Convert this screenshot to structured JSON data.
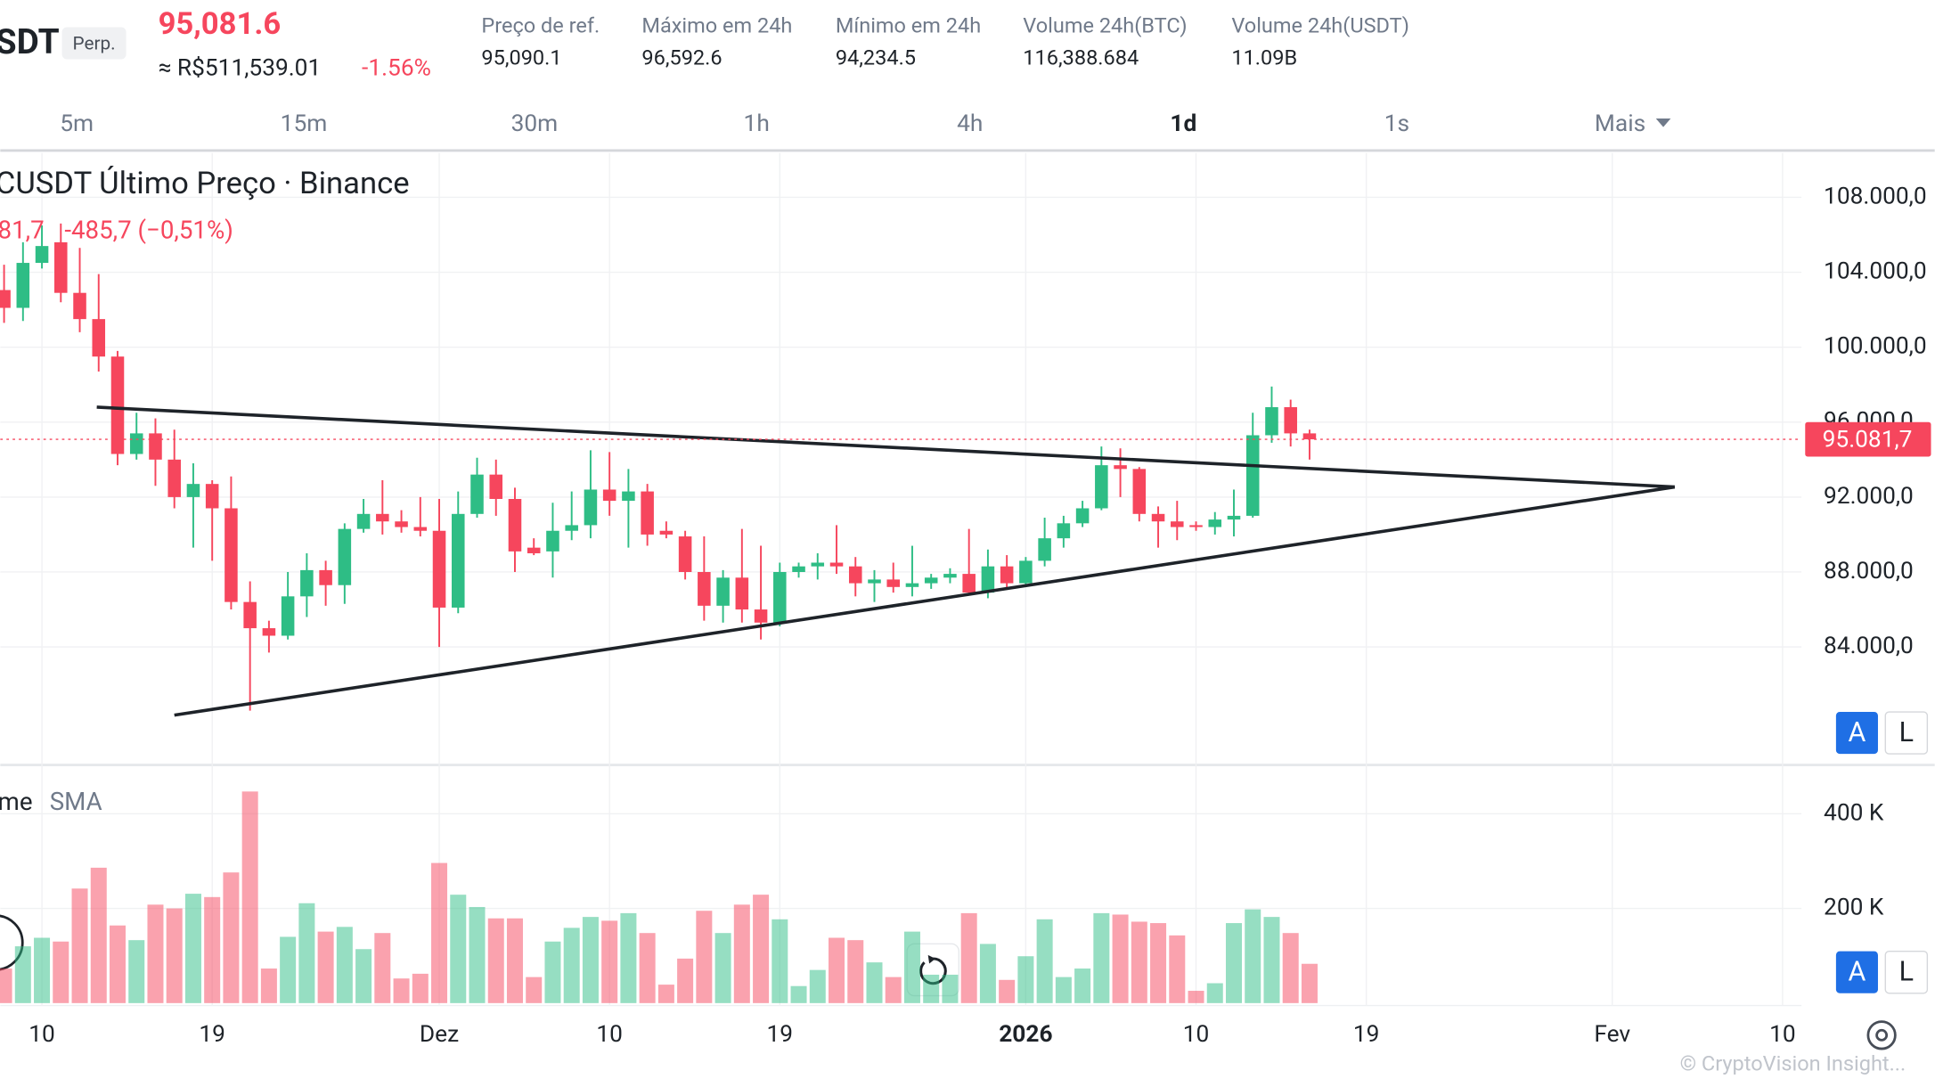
{
  "header": {
    "symbol": "SDT",
    "contract": "Perp.",
    "price": "95,081.6",
    "price_brl": "≈ R$511,539.01",
    "change": "-1.56%",
    "stats": [
      {
        "label": "Preço de ref.",
        "value": "95,090.1"
      },
      {
        "label": "Máximo em 24h",
        "value": "96,592.6"
      },
      {
        "label": "Mínimo em 24h",
        "value": "94,234.5"
      },
      {
        "label": "Volume 24h(BTC)",
        "value": "116,388.684"
      },
      {
        "label": "Volume 24h(USDT)",
        "value": "11.09B"
      }
    ]
  },
  "timeframes": {
    "items": [
      "5m",
      "15m",
      "30m",
      "1h",
      "4h",
      "1d",
      "1s",
      "Mais"
    ],
    "active": "1d"
  },
  "chart_data": {
    "type": "candlestick",
    "title": "CUSDT Último Preço · Binance",
    "legend_price": "81,7",
    "legend_change": "-485,7 (−0,51%)",
    "up_color": "#2ebd85",
    "down_color": "#f6465d",
    "open": [
      103050,
      102100,
      104500,
      105600,
      102900,
      101500,
      99500,
      94300,
      95400,
      94000,
      92000,
      92700,
      91400,
      86400,
      85000,
      84600,
      86700,
      88100,
      87300,
      90300,
      91100,
      90700,
      90400,
      90200,
      86100,
      91100,
      93200,
      91900,
      89300,
      89100,
      90200,
      90500,
      92400,
      91800,
      92300,
      90200,
      89900,
      88000,
      86200,
      87700,
      86000,
      85300,
      88000,
      88300,
      88500,
      88300,
      87400,
      87600,
      87200,
      87400,
      87700,
      87900,
      86900,
      88300,
      87400,
      88600,
      89800,
      90600,
      91400,
      93700,
      93500,
      91100,
      90700,
      90500,
      90400,
      90800,
      91000,
      95300,
      96800,
      95400
    ],
    "high": [
      104400,
      105600,
      106500,
      106600,
      105300,
      103900,
      99800,
      96500,
      96200,
      95600,
      93800,
      92900,
      93100,
      87500,
      85400,
      88000,
      89000,
      88600,
      90600,
      91900,
      92900,
      91300,
      92000,
      91900,
      92300,
      94100,
      94000,
      92500,
      89800,
      91700,
      92300,
      94500,
      94400,
      93500,
      92700,
      90700,
      90200,
      89900,
      88100,
      90300,
      89400,
      88500,
      88500,
      89000,
      90500,
      88800,
      88100,
      88500,
      89400,
      87900,
      88200,
      90300,
      89200,
      88900,
      88800,
      90900,
      91000,
      91800,
      94700,
      94600,
      93600,
      91500,
      91800,
      90700,
      91200,
      92400,
      96500,
      97900,
      97200,
      95600
    ],
    "low": [
      101300,
      101400,
      104200,
      102400,
      100800,
      98700,
      93700,
      94000,
      92600,
      91400,
      89300,
      88600,
      86000,
      80600,
      83700,
      84400,
      85600,
      86200,
      86300,
      90100,
      90000,
      90100,
      89900,
      84000,
      85800,
      90900,
      91000,
      88000,
      88900,
      87700,
      89700,
      89800,
      91000,
      89300,
      89400,
      89800,
      87600,
      85400,
      85300,
      85300,
      84400,
      85100,
      87700,
      87600,
      87900,
      86700,
      86400,
      86900,
      86700,
      87100,
      87400,
      86800,
      86600,
      87100,
      87200,
      88300,
      89300,
      90400,
      91300,
      92000,
      90700,
      89300,
      89700,
      90200,
      90000,
      89900,
      90900,
      94900,
      94700,
      94000
    ],
    "close": [
      102100,
      104500,
      105400,
      102900,
      101500,
      99500,
      94300,
      95400,
      94000,
      92000,
      92700,
      91400,
      86400,
      85000,
      84600,
      86700,
      88100,
      87300,
      90300,
      91100,
      90700,
      90400,
      90200,
      86100,
      91100,
      93200,
      91900,
      89100,
      89000,
      90200,
      90500,
      92400,
      91800,
      92300,
      90000,
      90000,
      88000,
      86200,
      87700,
      86000,
      85300,
      88000,
      88300,
      88500,
      88300,
      87400,
      87600,
      87200,
      87400,
      87700,
      87900,
      86900,
      88300,
      87400,
      88600,
      89800,
      90600,
      91400,
      93700,
      93500,
      91100,
      90700,
      90400,
      90400,
      90800,
      91000,
      95300,
      96800,
      95400,
      95081.7
    ],
    "volume": [
      73,
      120,
      138,
      130,
      242,
      286,
      164,
      133,
      208,
      200,
      231,
      224,
      276,
      447,
      73,
      140,
      211,
      151,
      161,
      114,
      148,
      52,
      62,
      296,
      229,
      203,
      179,
      179,
      55,
      130,
      159,
      182,
      174,
      190,
      148,
      39,
      94,
      195,
      148,
      208,
      229,
      177,
      36,
      70,
      138,
      133,
      86,
      55,
      151,
      60,
      60,
      190,
      125,
      49,
      99,
      177,
      55,
      73,
      190,
      187,
      172,
      169,
      143,
      26,
      42,
      169,
      198,
      182,
      148,
      83
    ],
    "last_price_label": "95.081,7",
    "xlim": [
      -0.2,
      95
    ],
    "xticks": [
      {
        "value": 2,
        "label": "10"
      },
      {
        "value": 11,
        "label": "19"
      },
      {
        "value": 23,
        "label": "Dez"
      },
      {
        "value": 32,
        "label": "10"
      },
      {
        "value": 41,
        "label": "19"
      },
      {
        "value": 54,
        "label": "2026"
      },
      {
        "value": 63,
        "label": "10"
      },
      {
        "value": 72,
        "label": "19"
      },
      {
        "value": 85,
        "label": "Fev"
      },
      {
        "value": 94,
        "label": "10"
      }
    ],
    "ylim": [
      77700,
      110300
    ],
    "yticks": [
      {
        "value": 84000,
        "label": "84.000,0"
      },
      {
        "value": 88000,
        "label": "88.000,0"
      },
      {
        "value": 92000,
        "label": "92.000,0"
      },
      {
        "value": 96000,
        "label": "96.000,0"
      },
      {
        "value": 100000,
        "label": "100.000,0"
      },
      {
        "value": 104000,
        "label": "104.000,0"
      },
      {
        "value": 108000,
        "label": "108.000,0"
      }
    ],
    "volume_label": "me",
    "volume_indicator": "SMA",
    "vlim": [
      0,
      490
    ],
    "vticks": [
      {
        "value": 200,
        "label": "200 K"
      },
      {
        "value": 400,
        "label": "400 K"
      }
    ],
    "drawings": [
      {
        "x": [
          4.9,
          88.3
        ],
        "y": [
          96800,
          92540
        ]
      },
      {
        "x": [
          9,
          88.3
        ],
        "y": [
          80360,
          92540
        ]
      }
    ],
    "grid": true
  },
  "buttons": {
    "auto": "A",
    "log": "L"
  },
  "watermark": "© CryptoVision Insight..."
}
